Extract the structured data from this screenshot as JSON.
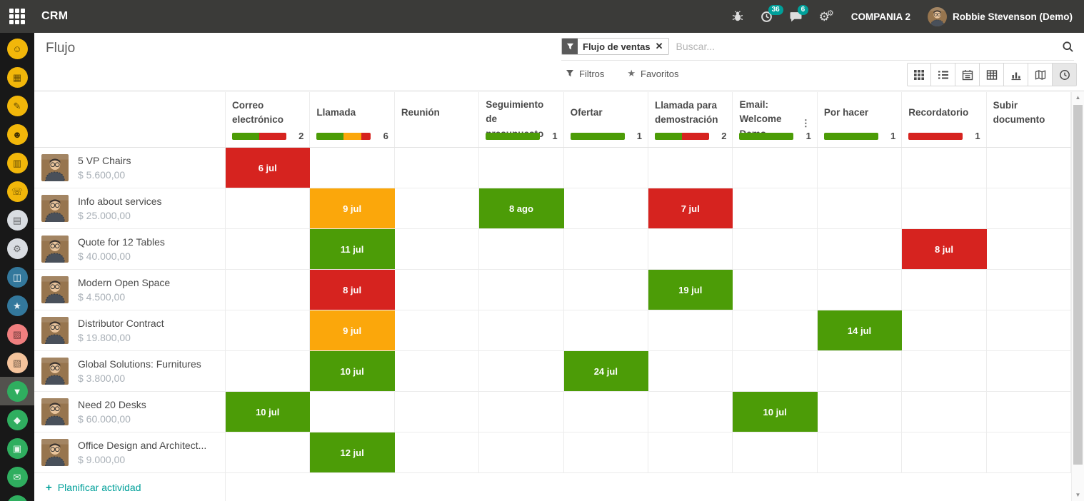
{
  "topbar": {
    "app": "CRM",
    "company": "COMPANIA 2",
    "user": "Robbie Stevenson (Demo)",
    "activity_count": "36",
    "message_count": "6",
    "badge_color": "#00a09a"
  },
  "breadcrumb": "Flujo",
  "search": {
    "facet": "Flujo de ventas",
    "placeholder": "Buscar...",
    "filters_label": "Filtros",
    "favorites_label": "Favoritos"
  },
  "view_switcher": {
    "views": [
      "kanban",
      "list",
      "calendar",
      "pivot",
      "graph",
      "map",
      "activity"
    ],
    "active": "activity"
  },
  "sidebar": {
    "items": [
      {
        "name": "contacts",
        "color": "#f2b70a",
        "fg": "rgba(0,0,0,0.6)",
        "glyph": "☺",
        "active": false
      },
      {
        "name": "calendar",
        "color": "#f2b70a",
        "fg": "rgba(0,0,0,0.6)",
        "glyph": "▦",
        "active": false
      },
      {
        "name": "notes",
        "color": "#f2b70a",
        "fg": "rgba(0,0,0,0.6)",
        "glyph": "✎",
        "active": false
      },
      {
        "name": "employees",
        "color": "#f2b70a",
        "fg": "rgba(0,0,0,0.75)",
        "glyph": "☻",
        "active": false
      },
      {
        "name": "presentations",
        "color": "#f2b70a",
        "fg": "rgba(0,0,0,0.6)",
        "glyph": "▥",
        "active": false
      },
      {
        "name": "phone",
        "color": "#f2b70a",
        "fg": "rgba(0,0,0,0.6)",
        "glyph": "☏",
        "active": false
      },
      {
        "name": "documents",
        "color": "#d9dde2",
        "fg": "rgba(0,0,0,0.55)",
        "glyph": "▤",
        "active": false
      },
      {
        "name": "fleet",
        "color": "#d9dde2",
        "fg": "rgba(0,0,0,0.55)",
        "glyph": "⚙",
        "active": false
      },
      {
        "name": "elearning",
        "color": "#33789c",
        "fg": "rgba(255,255,255,0.9)",
        "glyph": "◫",
        "active": false
      },
      {
        "name": "events",
        "color": "#33789c",
        "fg": "rgba(255,255,255,0.9)",
        "glyph": "★",
        "active": false
      },
      {
        "name": "purchase",
        "color": "#f07f7f",
        "fg": "rgba(0,0,0,0.55)",
        "glyph": "▨",
        "active": false
      },
      {
        "name": "inventory",
        "color": "#f5c49c",
        "fg": "rgba(0,0,0,0.55)",
        "glyph": "▧",
        "active": false
      },
      {
        "name": "crm",
        "color": "#2fae5f",
        "fg": "rgba(255,255,255,0.95)",
        "glyph": "▼",
        "active": true
      },
      {
        "name": "sales",
        "color": "#2fae5f",
        "fg": "rgba(255,255,255,0.9)",
        "glyph": "◆",
        "active": false
      },
      {
        "name": "point-of-sale",
        "color": "#2fae5f",
        "fg": "rgba(255,255,255,0.9)",
        "glyph": "▣",
        "active": false
      },
      {
        "name": "livechat",
        "color": "#2fae5f",
        "fg": "rgba(255,255,255,0.9)",
        "glyph": "✉",
        "active": false
      },
      {
        "name": "project",
        "color": "#2fae5f",
        "fg": "rgba(255,255,255,0.9)",
        "glyph": "●",
        "active": false
      }
    ]
  },
  "status_colors": {
    "green": "#4c9c07",
    "orange": "#fba70b",
    "red": "#d6231f"
  },
  "grid": {
    "columns": [
      {
        "label": "Correo electrónico",
        "count": "2",
        "has_menu": false,
        "segments": [
          {
            "status": "green",
            "pct": 50
          },
          {
            "status": "red",
            "pct": 50
          }
        ]
      },
      {
        "label": "Llamada",
        "count": "6",
        "has_menu": false,
        "segments": [
          {
            "status": "green",
            "pct": 50
          },
          {
            "status": "orange",
            "pct": 33
          },
          {
            "status": "red",
            "pct": 17
          }
        ]
      },
      {
        "label": "Reunión",
        "count": "",
        "has_menu": false,
        "segments": []
      },
      {
        "label": "Seguimiento de presupuesto",
        "count": "1",
        "has_menu": false,
        "segments": [
          {
            "status": "green",
            "pct": 100
          }
        ]
      },
      {
        "label": "Ofertar",
        "count": "1",
        "has_menu": false,
        "segments": [
          {
            "status": "green",
            "pct": 100
          }
        ]
      },
      {
        "label": "Llamada para demostración",
        "count": "2",
        "has_menu": false,
        "segments": [
          {
            "status": "green",
            "pct": 50
          },
          {
            "status": "red",
            "pct": 50
          }
        ]
      },
      {
        "label": "Email: Welcome Demo",
        "count": "1",
        "has_menu": true,
        "segments": [
          {
            "status": "green",
            "pct": 100
          }
        ]
      },
      {
        "label": "Por hacer",
        "count": "1",
        "has_menu": false,
        "segments": [
          {
            "status": "green",
            "pct": 100
          }
        ]
      },
      {
        "label": "Recordatorio",
        "count": "1",
        "has_menu": false,
        "segments": [
          {
            "status": "red",
            "pct": 100
          }
        ]
      },
      {
        "label": "Subir documento",
        "count": "",
        "has_menu": false,
        "segments": []
      }
    ],
    "rows": [
      {
        "title": "5 VP Chairs",
        "amount": "$ 5.600,00",
        "cells": [
          {
            "col": 0,
            "label": "6 jul",
            "status": "red"
          }
        ]
      },
      {
        "title": "Info about services",
        "amount": "$ 25.000,00",
        "cells": [
          {
            "col": 1,
            "label": "9 jul",
            "status": "orange"
          },
          {
            "col": 3,
            "label": "8 ago",
            "status": "green"
          },
          {
            "col": 5,
            "label": "7 jul",
            "status": "red"
          }
        ]
      },
      {
        "title": "Quote for 12 Tables",
        "amount": "$ 40.000,00",
        "cells": [
          {
            "col": 1,
            "label": "11 jul",
            "status": "green"
          },
          {
            "col": 8,
            "label": "8 jul",
            "status": "red"
          }
        ]
      },
      {
        "title": "Modern Open Space",
        "amount": "$ 4.500,00",
        "cells": [
          {
            "col": 1,
            "label": "8 jul",
            "status": "red"
          },
          {
            "col": 5,
            "label": "19 jul",
            "status": "green"
          }
        ]
      },
      {
        "title": "Distributor Contract",
        "amount": "$ 19.800,00",
        "cells": [
          {
            "col": 1,
            "label": "9 jul",
            "status": "orange"
          },
          {
            "col": 7,
            "label": "14 jul",
            "status": "green"
          }
        ]
      },
      {
        "title": "Global Solutions: Furnitures",
        "amount": "$ 3.800,00",
        "cells": [
          {
            "col": 1,
            "label": "10 jul",
            "status": "green"
          },
          {
            "col": 4,
            "label": "24 jul",
            "status": "green"
          }
        ]
      },
      {
        "title": "Need 20 Desks",
        "amount": "$ 60.000,00",
        "cells": [
          {
            "col": 0,
            "label": "10 jul",
            "status": "green"
          },
          {
            "col": 6,
            "label": "10 jul",
            "status": "green"
          }
        ]
      },
      {
        "title": "Office Design and Architect...",
        "amount": "$ 9.000,00",
        "cells": [
          {
            "col": 1,
            "label": "12 jul",
            "status": "green"
          }
        ]
      }
    ],
    "footer_action": "Planificar actividad"
  }
}
